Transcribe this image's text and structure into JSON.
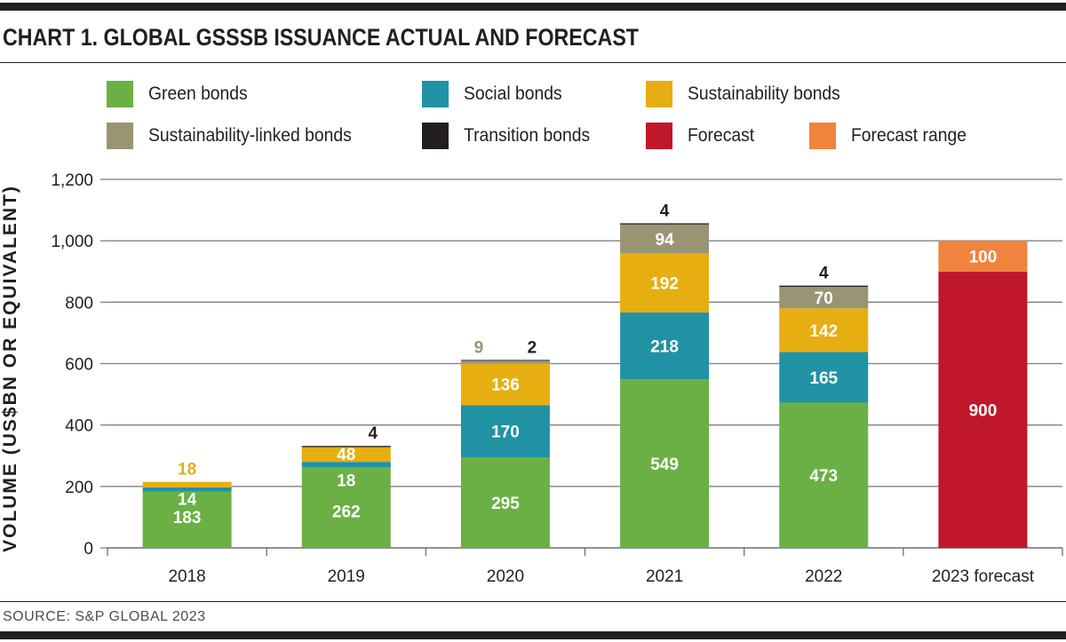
{
  "chart_data": {
    "type": "bar",
    "stacked": true,
    "title": "CHART 1. GLOBAL GSSSB ISSUANCE ACTUAL AND FORECAST",
    "xlabel": "",
    "ylabel": "VOLUME (US$BN OR EQUIVALENT)",
    "ylim": [
      0,
      1200
    ],
    "yticks": [
      0,
      200,
      400,
      600,
      800,
      1000,
      1200
    ],
    "ytick_labels": [
      "0",
      "200",
      "400",
      "600",
      "800",
      "1,000",
      "1,200"
    ],
    "grid": true,
    "legend_position": "top",
    "categories": [
      "2018",
      "2019",
      "2020",
      "2021",
      "2022",
      "2023 forecast"
    ],
    "series": [
      {
        "name": "Green bonds",
        "color": "#6ab045",
        "values": [
          183,
          262,
          295,
          549,
          473,
          0
        ]
      },
      {
        "name": "Social bonds",
        "color": "#2192a4",
        "values": [
          14,
          18,
          170,
          218,
          165,
          0
        ]
      },
      {
        "name": "Sustainability bonds",
        "color": "#e6ae11",
        "values": [
          18,
          48,
          136,
          192,
          142,
          0
        ]
      },
      {
        "name": "Sustainability-linked bonds",
        "color": "#999474",
        "values": [
          0,
          0,
          9,
          94,
          70,
          0
        ]
      },
      {
        "name": "Transition bonds",
        "color": "#231f20",
        "values": [
          0,
          4,
          2,
          4,
          4,
          0
        ]
      },
      {
        "name": "Forecast",
        "color": "#c0172b",
        "values": [
          0,
          0,
          0,
          0,
          0,
          900
        ]
      },
      {
        "name": "Forecast range",
        "color": "#f0843c",
        "values": [
          0,
          0,
          0,
          0,
          0,
          100
        ]
      }
    ],
    "source": "SOURCE: S&P GLOBAL 2023"
  }
}
